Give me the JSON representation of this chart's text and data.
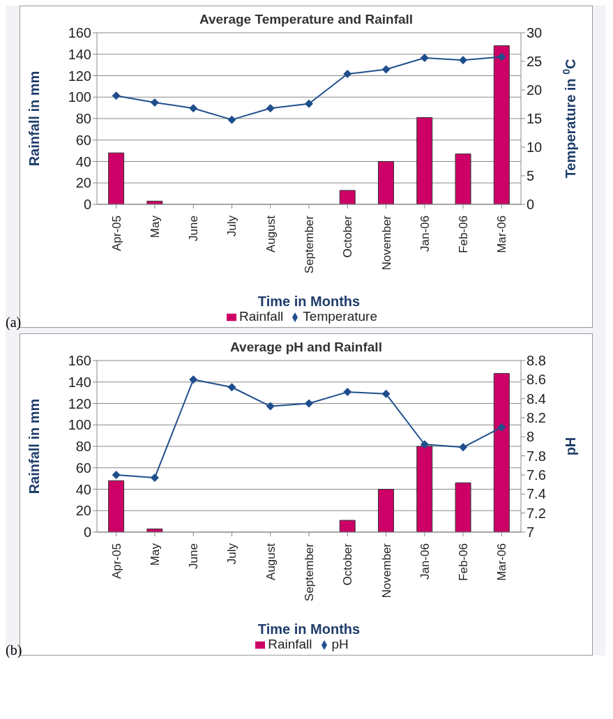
{
  "chart_data": [
    {
      "type": "bar",
      "title": "Average Temperature and Rainfall",
      "xlabel": "Time in Months",
      "ylabel": "Rainfall in mm",
      "y2label": "Temperature in $^{0}$C",
      "categories": [
        "Apr-05",
        "May",
        "June",
        "July",
        "August",
        "September",
        "October",
        "November",
        "Jan-06",
        "Feb-06",
        "Mar-06"
      ],
      "series": [
        {
          "name": "Rainfall",
          "color": "#cc0066",
          "values": [
            48,
            3,
            0,
            0,
            0,
            0,
            13,
            40,
            81,
            47,
            148
          ]
        },
        {
          "name": "Temperature",
          "type": "line",
          "axis": "y2",
          "color": "#1f4e8c",
          "values": [
            19,
            17.8,
            16.8,
            14.8,
            16.8,
            17.6,
            22.8,
            23.6,
            25.6,
            25.2,
            25.8
          ]
        }
      ],
      "ylim": [
        0,
        160
      ],
      "yticks": [
        0,
        20,
        40,
        60,
        80,
        100,
        120,
        140,
        160
      ],
      "y2lim": [
        0,
        30
      ],
      "y2ticks": [
        0,
        5,
        10,
        15,
        20,
        25,
        30
      ],
      "grid": "y",
      "legend": "bottom",
      "marker": "diamond",
      "annotations": [
        "(a)"
      ]
    },
    {
      "type": "bar",
      "title": "Average pH and Rainfall",
      "xlabel": "Time in Months",
      "ylabel": "Rainfall in mm",
      "y2label": "pH",
      "categories": [
        "Apr-05",
        "May",
        "June",
        "July",
        "August",
        "September",
        "October",
        "November",
        "Jan-06",
        "Feb-06",
        "Mar-06"
      ],
      "series": [
        {
          "name": "Rainfall",
          "color": "#cc0066",
          "values": [
            48,
            3,
            0,
            0,
            0,
            0,
            11,
            40,
            80,
            46,
            148
          ]
        },
        {
          "name": "pH",
          "type": "line",
          "axis": "y2",
          "color": "#1f4e8c",
          "values": [
            7.6,
            7.57,
            8.6,
            8.52,
            8.32,
            8.35,
            8.47,
            8.45,
            7.92,
            7.89,
            8.1
          ]
        }
      ],
      "ylim": [
        0,
        160
      ],
      "yticks": [
        0,
        20,
        40,
        60,
        80,
        100,
        120,
        140,
        160
      ],
      "y2lim": [
        7,
        8.8
      ],
      "y2ticks": [
        7,
        7.2,
        7.4,
        7.6,
        7.8,
        8,
        8.2,
        8.4,
        8.6,
        8.8
      ],
      "grid": "y",
      "legend": "bottom",
      "marker": "diamond",
      "annotations": [
        "(b)"
      ]
    }
  ]
}
